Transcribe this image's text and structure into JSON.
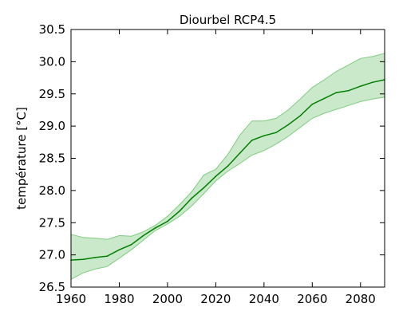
{
  "chart_data": {
    "type": "line",
    "title": "Diourbel RCP4.5",
    "xlabel": "",
    "ylabel": "température [°C]",
    "xlim": [
      1960,
      2090
    ],
    "ylim": [
      26.5,
      30.5
    ],
    "grid": false,
    "x_ticks": [
      1960,
      1980,
      2000,
      2020,
      2040,
      2060,
      2080
    ],
    "x_tick_labels": [
      "1960",
      "1980",
      "2000",
      "2020",
      "2040",
      "2060",
      "2080"
    ],
    "y_ticks": [
      26.5,
      27.0,
      27.5,
      28.0,
      28.5,
      29.0,
      29.5,
      30.0,
      30.5
    ],
    "y_tick_labels": [
      "26.5",
      "27.0",
      "27.5",
      "28.0",
      "28.5",
      "29.0",
      "29.5",
      "30.0",
      "30.5"
    ],
    "colors": {
      "line": "#007f00",
      "band": "#a6d9a6",
      "band_edge": "#7fcc7f"
    },
    "series": [
      {
        "x": [
          1960,
          1965,
          1970,
          1975,
          1980,
          1985,
          1990,
          1995,
          2000,
          2005,
          2010,
          2015,
          2020,
          2025,
          2030,
          2035,
          2040,
          2045,
          2050,
          2055,
          2060,
          2065,
          2070,
          2075,
          2080,
          2085,
          2090
        ],
        "y": [
          26.92,
          26.93,
          26.96,
          26.98,
          27.08,
          27.16,
          27.3,
          27.42,
          27.52,
          27.68,
          27.88,
          28.04,
          28.22,
          28.38,
          28.58,
          28.78,
          28.85,
          28.9,
          29.02,
          29.16,
          29.34,
          29.43,
          29.52,
          29.55,
          29.62,
          29.68,
          29.72
        ],
        "lower": [
          26.62,
          26.72,
          26.78,
          26.82,
          26.95,
          27.08,
          27.23,
          27.38,
          27.48,
          27.6,
          27.76,
          27.95,
          28.15,
          28.3,
          28.42,
          28.55,
          28.62,
          28.72,
          28.84,
          28.98,
          29.12,
          29.2,
          29.26,
          29.32,
          29.38,
          29.42,
          29.45
        ],
        "upper": [
          27.32,
          27.27,
          27.26,
          27.24,
          27.3,
          27.29,
          27.36,
          27.46,
          27.6,
          27.78,
          27.98,
          28.24,
          28.33,
          28.56,
          28.86,
          29.08,
          29.08,
          29.12,
          29.25,
          29.42,
          29.6,
          29.72,
          29.85,
          29.95,
          30.05,
          30.08,
          30.13
        ]
      }
    ]
  }
}
